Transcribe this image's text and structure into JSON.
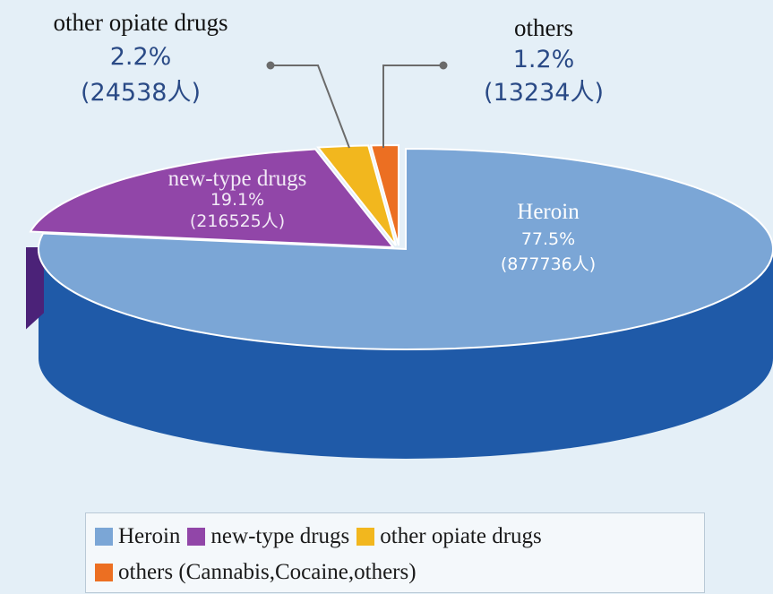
{
  "chart_data": {
    "type": "pie",
    "categories": [
      "Heroin",
      "new-type drugs",
      "other opiate drugs",
      "others"
    ],
    "values": [
      77.5,
      19.1,
      2.2,
      1.2
    ],
    "counts": [
      "877736人",
      "216525人",
      "24538人",
      "13234人"
    ],
    "slices": [
      {
        "name": "Heroin",
        "percent": "77.5%",
        "count": "(877736人)",
        "color": "#7ba6d6",
        "side": "#1f5aa8"
      },
      {
        "name": "new-type drugs",
        "percent": "19.1%",
        "count": "(216525人)",
        "color": "#9146a8",
        "side": "#5a2a86"
      },
      {
        "name": "other opiate drugs",
        "percent": "2.2%",
        "count": "(24538人)",
        "color": "#f2b71e",
        "side": "#c88d10"
      },
      {
        "name": "others",
        "percent": "1.2%",
        "count": "(13234人)",
        "color": "#ec6f22",
        "side": "#b84c12"
      }
    ],
    "legend": {
      "placement": "bottom",
      "items": [
        {
          "label": "Heroin",
          "color": "#7ba6d6"
        },
        {
          "label": "new-type drugs",
          "color": "#9146a8"
        },
        {
          "label": "other opiate drugs",
          "color": "#f2b71e"
        },
        {
          "label": "others (Cannabis,Cocaine,others)",
          "color": "#ec6f22"
        }
      ]
    }
  }
}
